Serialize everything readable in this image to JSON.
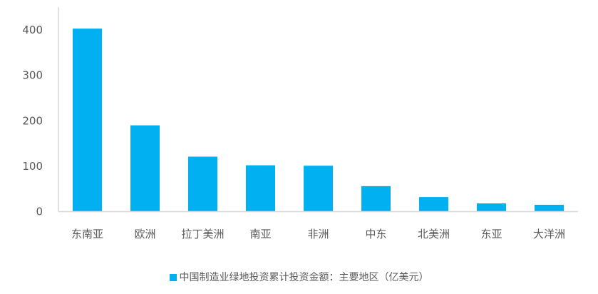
{
  "chart_data": {
    "type": "bar",
    "categories": [
      "东南亚",
      "欧洲",
      "拉丁美洲",
      "南亚",
      "非洲",
      "中东",
      "北美洲",
      "东亚",
      "大洋洲"
    ],
    "series": [
      {
        "name": "中国制造业绿地投资累计投资金额：主要地区（亿美元）",
        "values": [
          403,
          190,
          121,
          102,
          101,
          56,
          32,
          18,
          15
        ]
      }
    ],
    "yticks": [
      0,
      100,
      200,
      300,
      400
    ],
    "ylim": [
      0,
      400
    ],
    "grid": false,
    "legend": "bottom",
    "color": "#00B0F0"
  }
}
